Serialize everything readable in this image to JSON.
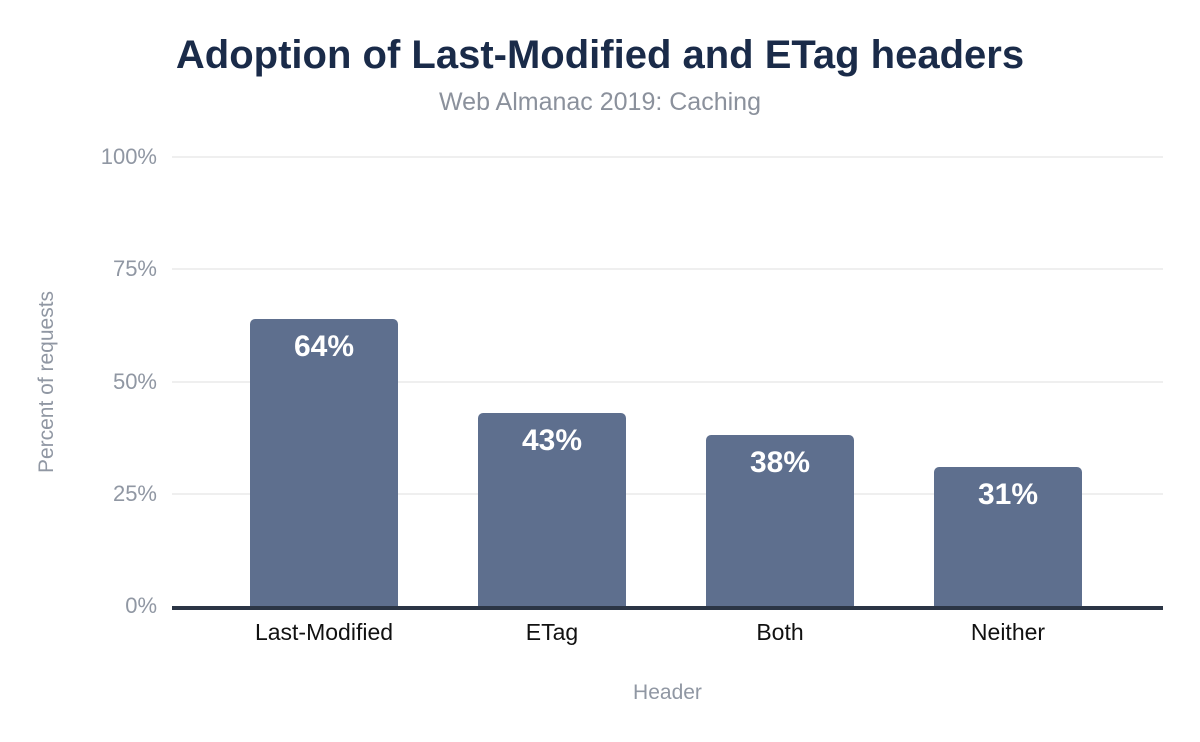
{
  "chart_data": {
    "type": "bar",
    "title": "Adoption of Last-Modified and ETag headers",
    "subtitle": "Web Almanac 2019: Caching",
    "xlabel": "Header",
    "ylabel": "Percent of requests",
    "categories": [
      "Last-Modified",
      "ETag",
      "Both",
      "Neither"
    ],
    "values": [
      64,
      43,
      38,
      31
    ],
    "value_labels": [
      "64%",
      "43%",
      "38%",
      "31%"
    ],
    "ylim": [
      0,
      100
    ],
    "yticks": [
      0,
      25,
      50,
      75,
      100
    ],
    "ytick_labels": [
      "0%",
      "25%",
      "50%",
      "75%",
      "100%"
    ],
    "grid": true,
    "legend": "none",
    "colors": {
      "bar": "#5e6f8e",
      "bar_label": "#ffffff",
      "title": "#1a2b49",
      "subtitle": "#8b919c",
      "muted": "#9097a3",
      "category_label": "#111111",
      "gridline": "#efefef",
      "axis_line": "#2b3545",
      "background": "#ffffff"
    }
  }
}
